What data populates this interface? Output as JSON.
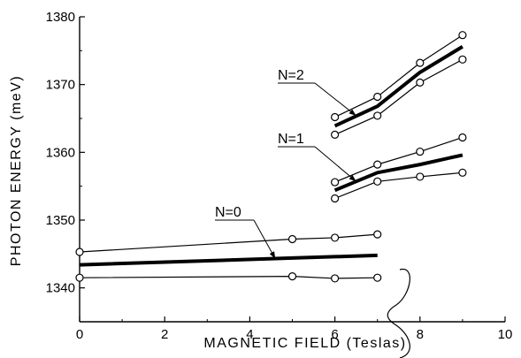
{
  "chart_data": {
    "type": "line",
    "xlabel": "MAGNETIC FIELD  (Teslas)",
    "ylabel": "PHOTON ENERGY  (meV)",
    "xlim": [
      0,
      10
    ],
    "ylim": [
      1335,
      1380
    ],
    "xticks": [
      "0",
      "2",
      "4",
      "6",
      "8",
      "10"
    ],
    "yticks": [
      "1340",
      "1350",
      "1360",
      "1370",
      "1380"
    ],
    "grid": false,
    "series": [
      {
        "group": "N=0",
        "style": "thin-circles",
        "x": [
          0,
          5,
          6,
          7
        ],
        "y": [
          1345.3,
          1347.2,
          1347.4,
          1347.9
        ]
      },
      {
        "group": "N=0",
        "style": "thin-circles",
        "x": [
          0,
          5,
          6,
          7
        ],
        "y": [
          1341.5,
          1341.7,
          1341.4,
          1341.5
        ]
      },
      {
        "group": "N=0",
        "style": "thick",
        "x": [
          0,
          5,
          7
        ],
        "y": [
          1343.4,
          1344.4,
          1344.8
        ]
      },
      {
        "group": "N=1",
        "style": "thin-circles",
        "x": [
          6,
          7,
          8,
          9
        ],
        "y": [
          1355.6,
          1358.2,
          1360.1,
          1362.2
        ]
      },
      {
        "group": "N=1",
        "style": "thin-circles",
        "x": [
          6,
          7,
          8,
          9
        ],
        "y": [
          1353.2,
          1355.7,
          1356.4,
          1357.0
        ]
      },
      {
        "group": "N=1",
        "style": "thick",
        "x": [
          6,
          7,
          8,
          9
        ],
        "y": [
          1354.4,
          1357.0,
          1358.2,
          1359.6
        ]
      },
      {
        "group": "N=2",
        "style": "thin-circles",
        "x": [
          6,
          7,
          8,
          9
        ],
        "y": [
          1365.2,
          1368.2,
          1373.2,
          1377.3
        ]
      },
      {
        "group": "N=2",
        "style": "thin-circles",
        "x": [
          6,
          7,
          8,
          9
        ],
        "y": [
          1362.6,
          1365.4,
          1370.3,
          1373.7
        ]
      },
      {
        "group": "N=2",
        "style": "thick",
        "x": [
          6,
          7,
          8,
          9
        ],
        "y": [
          1363.9,
          1366.8,
          1371.8,
          1375.6
        ]
      }
    ],
    "annotations": [
      {
        "text": "N=0",
        "points_to": {
          "x": 4.6,
          "y": 1344.3
        }
      },
      {
        "text": "N=1",
        "points_to": {
          "x": 6.5,
          "y": 1355.7
        }
      },
      {
        "text": "N=2",
        "points_to": {
          "x": 6.5,
          "y": 1365.4
        }
      }
    ]
  }
}
